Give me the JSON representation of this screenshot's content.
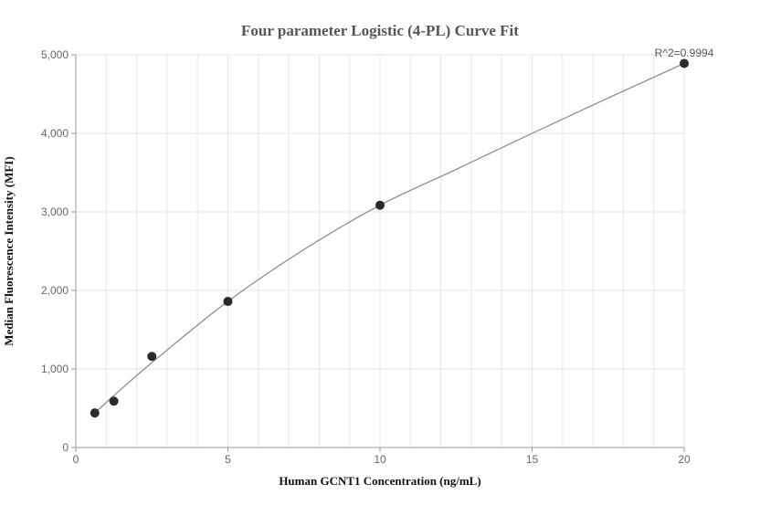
{
  "chart_data": {
    "type": "scatter",
    "title": "Four parameter Logistic (4-PL) Curve Fit",
    "xlabel": "Human GCNT1 Concentration (ng/mL)",
    "ylabel": "Median Fluorescence Intensity (MFI)",
    "xlim": [
      0,
      20
    ],
    "ylim": [
      0,
      5000
    ],
    "x_ticks": [
      0,
      5,
      10,
      15,
      20
    ],
    "x_tick_labels": [
      "0",
      "5",
      "10",
      "15",
      "20"
    ],
    "y_ticks": [
      0,
      1000,
      2000,
      3000,
      4000,
      5000
    ],
    "y_tick_labels": [
      "0",
      "1,000",
      "2,000",
      "3,000",
      "4,000",
      "5,000"
    ],
    "grid": true,
    "points": [
      {
        "x": 0.625,
        "y": 440
      },
      {
        "x": 1.25,
        "y": 590
      },
      {
        "x": 2.5,
        "y": 1160
      },
      {
        "x": 5,
        "y": 1860
      },
      {
        "x": 10,
        "y": 3085
      },
      {
        "x": 20,
        "y": 4890
      }
    ],
    "fit_curve": [
      {
        "x": 0.625,
        "y": 440
      },
      {
        "x": 1.25,
        "y": 660
      },
      {
        "x": 2.5,
        "y": 1080
      },
      {
        "x": 5,
        "y": 1860
      },
      {
        "x": 7.5,
        "y": 2520
      },
      {
        "x": 10,
        "y": 3085
      },
      {
        "x": 12.5,
        "y": 3540
      },
      {
        "x": 15,
        "y": 4000
      },
      {
        "x": 17.5,
        "y": 4450
      },
      {
        "x": 20,
        "y": 4890
      }
    ],
    "annotation": "R^2=0.9994",
    "colors": {
      "points": "#2b2b2b",
      "curve": "#888888",
      "grid": "#e6e6ee",
      "axis": "#999999"
    }
  }
}
